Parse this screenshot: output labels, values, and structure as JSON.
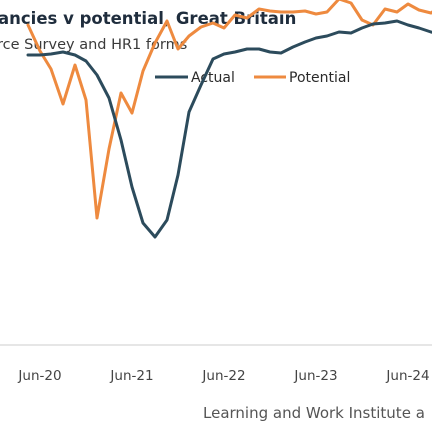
{
  "title": "ancies v potential, Great Britain",
  "subtitle": "rce Survey and HR1 forms",
  "source": "Learning and Work Institute a",
  "colors": {
    "actual": "#2c4b5c",
    "potential": "#ee8a3f",
    "axis": "#cccccc"
  },
  "chart_data": {
    "type": "line",
    "legend_position": "top-right",
    "grid": false,
    "x_tick_labels": [
      "Jun-20",
      "Jun-21",
      "Jun-22",
      "Jun-23",
      "Jun-24"
    ],
    "series": [
      {
        "name": "Actual",
        "color": "#2c4b5c",
        "values": [
          [
            -0.13,
            290
          ],
          [
            0.0,
            290
          ],
          [
            0.12,
            291
          ],
          [
            0.25,
            293
          ],
          [
            0.38,
            290
          ],
          [
            0.5,
            284
          ],
          [
            0.62,
            270
          ],
          [
            0.75,
            247
          ],
          [
            0.88,
            205
          ],
          [
            1.0,
            158
          ],
          [
            1.12,
            122
          ],
          [
            1.25,
            108
          ],
          [
            1.38,
            125
          ],
          [
            1.5,
            170
          ],
          [
            1.62,
            233
          ],
          [
            1.75,
            260
          ],
          [
            1.88,
            286
          ],
          [
            2.0,
            291
          ],
          [
            2.12,
            293
          ],
          [
            2.25,
            296
          ],
          [
            2.38,
            296
          ],
          [
            2.5,
            293
          ],
          [
            2.62,
            292
          ],
          [
            2.75,
            298
          ],
          [
            2.88,
            303
          ],
          [
            3.0,
            307
          ],
          [
            3.12,
            309
          ],
          [
            3.25,
            313
          ],
          [
            3.38,
            312
          ],
          [
            3.5,
            317
          ],
          [
            3.62,
            321
          ],
          [
            3.75,
            322
          ],
          [
            3.88,
            324
          ],
          [
            4.0,
            320
          ],
          [
            4.12,
            317
          ],
          [
            4.25,
            313
          ],
          [
            4.38,
            310
          ],
          [
            4.5,
            306
          ],
          [
            4.62,
            301
          ],
          [
            4.75,
            297
          ],
          [
            4.88,
            297
          ],
          [
            5.0,
            301
          ],
          [
            5.12,
            306
          ],
          [
            5.25,
            301
          ],
          [
            5.38,
            295
          ],
          [
            5.5,
            290
          ],
          [
            5.62,
            296
          ],
          [
            5.75,
            305
          ],
          [
            5.88,
            310
          ],
          [
            6.0,
            300
          ],
          [
            6.12,
            287
          ],
          [
            6.25,
            273
          ],
          [
            6.38,
            281
          ],
          [
            6.5,
            293
          ],
          [
            6.62,
            300
          ],
          [
            6.75,
            297
          ],
          [
            6.88,
            298
          ],
          [
            7.0,
            288
          ],
          [
            7.12,
            300
          ],
          [
            7.25,
            307
          ],
          [
            7.38,
            300
          ],
          [
            7.5,
            297
          ],
          [
            7.62,
            292
          ],
          [
            7.75,
            286
          ],
          [
            7.88,
            289
          ]
        ]
      },
      {
        "name": "Potential",
        "color": "#ee8a3f",
        "values": [
          [
            -0.13,
            320
          ],
          [
            0.0,
            294
          ],
          [
            0.12,
            276
          ],
          [
            0.25,
            241
          ],
          [
            0.38,
            280
          ],
          [
            0.5,
            245
          ],
          [
            0.62,
            127
          ],
          [
            0.75,
            196
          ],
          [
            0.88,
            252
          ],
          [
            1.0,
            232
          ],
          [
            1.12,
            274
          ],
          [
            1.25,
            302
          ],
          [
            1.38,
            324
          ],
          [
            1.5,
            296
          ],
          [
            1.62,
            309
          ],
          [
            1.75,
            318
          ],
          [
            1.88,
            322
          ],
          [
            2.0,
            317
          ],
          [
            2.12,
            330
          ],
          [
            2.25,
            327
          ],
          [
            2.38,
            336
          ],
          [
            2.5,
            334
          ],
          [
            2.62,
            333
          ],
          [
            2.75,
            333
          ],
          [
            2.88,
            334
          ],
          [
            3.0,
            331
          ],
          [
            3.12,
            333
          ],
          [
            3.25,
            346
          ],
          [
            3.38,
            342
          ],
          [
            3.5,
            325
          ],
          [
            3.62,
            320
          ],
          [
            3.75,
            336
          ],
          [
            3.88,
            333
          ],
          [
            4.0,
            341
          ],
          [
            4.12,
            335
          ],
          [
            4.25,
            332
          ],
          [
            4.38,
            341
          ],
          [
            4.5,
            335
          ],
          [
            4.62,
            332
          ],
          [
            4.75,
            333
          ],
          [
            4.88,
            330
          ],
          [
            5.0,
            323
          ],
          [
            5.12,
            334
          ],
          [
            5.25,
            318
          ],
          [
            5.38,
            314
          ],
          [
            5.5,
            324
          ],
          [
            5.62,
            326
          ],
          [
            5.75,
            322
          ],
          [
            5.88,
            316
          ],
          [
            6.0,
            312
          ],
          [
            6.12,
            325
          ],
          [
            6.25,
            328
          ],
          [
            6.38,
            316
          ],
          [
            6.5,
            309
          ],
          [
            6.62,
            327
          ],
          [
            6.75,
            318
          ],
          [
            6.88,
            316
          ],
          [
            7.0,
            318
          ],
          [
            7.12,
            310
          ],
          [
            7.25,
            327
          ],
          [
            7.38,
            321
          ],
          [
            7.5,
            316
          ],
          [
            7.62,
            328
          ],
          [
            7.75,
            323
          ],
          [
            7.88,
            330
          ]
        ]
      }
    ]
  }
}
